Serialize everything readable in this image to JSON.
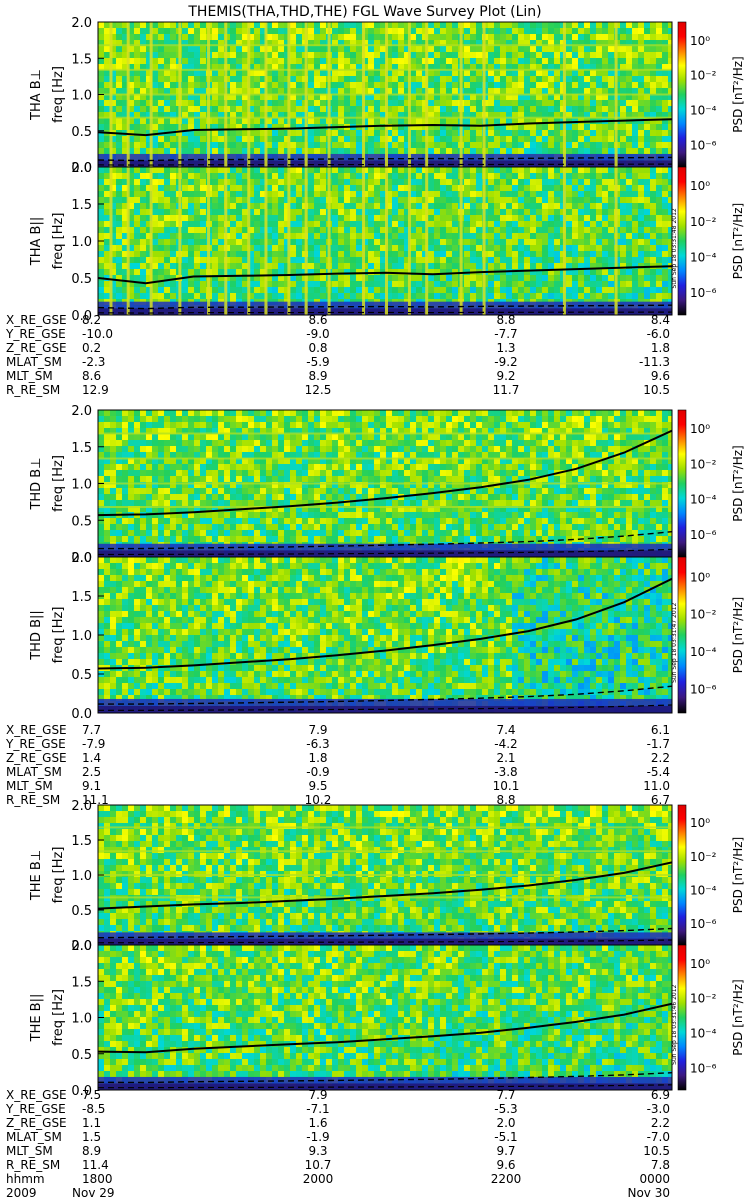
{
  "title": "THEMIS(THA,THD,THE) FGL Wave Survey Plot (Lin)",
  "freq_unit_label": "freq [Hz]",
  "y_ticks": [
    "2.0",
    "1.5",
    "1.0",
    "0.5",
    "0.0"
  ],
  "colorbar": {
    "label": "PSD [nT²/Hz]",
    "ticks": [
      "10⁰",
      "10⁻²",
      "10⁻⁴",
      "10⁻⁶"
    ],
    "stops": [
      "#000000",
      "#3c1880",
      "#2020e0",
      "#0088ff",
      "#00d8d8",
      "#20d060",
      "#a0e000",
      "#ffff00",
      "#ff8000",
      "#ff0000",
      "#e00000"
    ]
  },
  "stamps": [
    "Sun Sep 18 03:31:48 2012",
    "Sun Sep 18 03:31:47 2012",
    "Sun Sep 18 03:31:46 2012"
  ],
  "chart_data": {
    "type": "heatmap",
    "ylim": [
      0,
      2.0
    ],
    "panels": [
      {
        "probe": "THA",
        "component": "B⊥",
        "label": "THA B⊥",
        "fce_line": [
          0.48,
          0.44,
          0.51,
          0.52,
          0.53,
          0.55,
          0.57,
          0.58,
          0.57,
          0.6,
          0.62,
          0.64,
          0.66
        ]
      },
      {
        "probe": "THA",
        "component": "B||",
        "label": "THA B||",
        "fce_line": [
          0.5,
          0.43,
          0.52,
          0.53,
          0.54,
          0.56,
          0.57,
          0.55,
          0.58,
          0.6,
          0.62,
          0.64,
          0.66
        ]
      },
      {
        "probe": "THD",
        "component": "B⊥",
        "label": "THD B⊥",
        "fce_line": [
          0.57,
          0.58,
          0.61,
          0.65,
          0.69,
          0.74,
          0.8,
          0.87,
          0.95,
          1.05,
          1.2,
          1.42,
          1.72
        ]
      },
      {
        "probe": "THD",
        "component": "B||",
        "label": "THD B||",
        "fce_line": [
          0.57,
          0.58,
          0.61,
          0.65,
          0.69,
          0.74,
          0.8,
          0.87,
          0.95,
          1.05,
          1.2,
          1.42,
          1.72
        ]
      },
      {
        "probe": "THE",
        "component": "B⊥",
        "label": "THE B⊥",
        "fce_line": [
          0.52,
          0.55,
          0.58,
          0.6,
          0.63,
          0.66,
          0.7,
          0.74,
          0.79,
          0.85,
          0.93,
          1.03,
          1.18
        ]
      },
      {
        "probe": "THE",
        "component": "B||",
        "label": "THE B||",
        "fce_line": [
          0.53,
          0.52,
          0.57,
          0.6,
          0.63,
          0.66,
          0.7,
          0.74,
          0.79,
          0.86,
          0.94,
          1.04,
          1.19
        ]
      }
    ],
    "ephemeris": [
      {
        "rows": [
          {
            "name": "X_RE_GSE",
            "values": [
              "8.2",
              "8.6",
              "8.8",
              "8.4"
            ]
          },
          {
            "name": "Y_RE_GSE",
            "values": [
              "-10.0",
              "-9.0",
              "-7.7",
              "-6.0"
            ]
          },
          {
            "name": "Z_RE_GSE",
            "values": [
              "0.2",
              "0.8",
              "1.3",
              "1.8"
            ]
          },
          {
            "name": "MLAT_SM",
            "values": [
              "-2.3",
              "-5.9",
              "-9.2",
              "-11.3"
            ]
          },
          {
            "name": "MLT_SM",
            "values": [
              "8.6",
              "8.9",
              "9.2",
              "9.6"
            ]
          },
          {
            "name": "R_RE_SM",
            "values": [
              "12.9",
              "12.5",
              "11.7",
              "10.5"
            ]
          }
        ]
      },
      {
        "rows": [
          {
            "name": "X_RE_GSE",
            "values": [
              "7.7",
              "7.9",
              "7.4",
              "6.1"
            ]
          },
          {
            "name": "Y_RE_GSE",
            "values": [
              "-7.9",
              "-6.3",
              "-4.2",
              "-1.7"
            ]
          },
          {
            "name": "Z_RE_GSE",
            "values": [
              "1.4",
              "1.8",
              "2.1",
              "2.2"
            ]
          },
          {
            "name": "MLAT_SM",
            "values": [
              "2.5",
              "-0.9",
              "-3.8",
              "-5.4"
            ]
          },
          {
            "name": "MLT_SM",
            "values": [
              "9.1",
              "9.5",
              "10.1",
              "11.0"
            ]
          },
          {
            "name": "R_RE_SM",
            "values": [
              "11.1",
              "10.2",
              "8.8",
              "6.7"
            ]
          }
        ]
      },
      {
        "rows": [
          {
            "name": "X_RE_GSE",
            "values": [
              "7.5",
              "7.9",
              "7.7",
              "6.9"
            ]
          },
          {
            "name": "Y_RE_GSE",
            "values": [
              "-8.5",
              "-7.1",
              "-5.3",
              "-3.0"
            ]
          },
          {
            "name": "Z_RE_GSE",
            "values": [
              "1.1",
              "1.6",
              "2.0",
              "2.2"
            ]
          },
          {
            "name": "MLAT_SM",
            "values": [
              "1.5",
              "-1.9",
              "-5.1",
              "-7.0"
            ]
          },
          {
            "name": "MLT_SM",
            "values": [
              "8.9",
              "9.3",
              "9.7",
              "10.5"
            ]
          },
          {
            "name": "R_RE_SM",
            "values": [
              "11.4",
              "10.7",
              "9.6",
              "7.8"
            ]
          },
          {
            "name": "hhmm",
            "values": [
              "1800",
              "2000",
              "2200",
              "0000"
            ]
          }
        ]
      }
    ],
    "date_start": "2009",
    "date_start_day": "Nov 29",
    "date_end_day": "Nov 30"
  }
}
